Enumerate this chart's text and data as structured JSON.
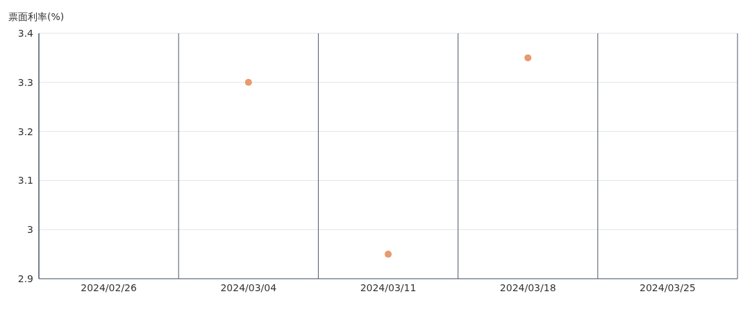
{
  "chart_data": {
    "type": "scatter",
    "ylabel": "票面利率(%)",
    "categories": [
      "2024/02/26",
      "2024/03/04",
      "2024/03/11",
      "2024/03/18",
      "2024/03/25"
    ],
    "series": [
      {
        "color": "#e89a6c",
        "values": [
          null,
          3.3,
          2.95,
          3.35,
          null
        ]
      }
    ],
    "ylim": [
      2.9,
      3.4
    ],
    "yticks": [
      2.9,
      3,
      3.1,
      3.2,
      3.3,
      3.4
    ],
    "grid": true,
    "marker": "circle"
  }
}
